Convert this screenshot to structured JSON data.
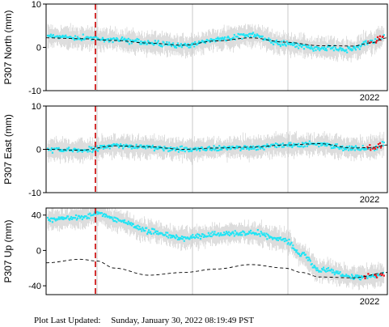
{
  "footer": {
    "label": "Plot Last Updated:",
    "timestamp": "Sunday, January 30, 2022 08:19:49 PST"
  },
  "colors": {
    "data_points": "#22e4f4",
    "recent_points": "#e8141c",
    "error_bars": "#c8c8c8",
    "model_line": "#000000",
    "event_line": "#d01c1c",
    "vgrid": "#bbbbbb"
  },
  "chart_data": [
    {
      "type": "scatter",
      "station": "P307",
      "component": "North",
      "ylabel": "P307 North (mm)",
      "ylim": [
        -10,
        10
      ],
      "yticks": [
        -10,
        0,
        10
      ],
      "x_tick_labels": [
        "2022"
      ],
      "grid": "vertical lines only",
      "event_marker": "dashed red vertical line",
      "series": [
        {
          "role": "daily position",
          "x_fraction": [
            0.0,
            0.1,
            0.2,
            0.3,
            0.4,
            0.5,
            0.6,
            0.7,
            0.8,
            0.9,
            0.95,
            1.0
          ],
          "values": [
            2.5,
            2.2,
            1.8,
            1.0,
            0.3,
            1.8,
            2.8,
            0.8,
            -0.2,
            -0.5,
            1.2,
            2.8
          ]
        },
        {
          "role": "model fit",
          "x_fraction": [
            0.0,
            0.1,
            0.2,
            0.3,
            0.4,
            0.5,
            0.6,
            0.7,
            0.8,
            0.9,
            0.95,
            1.0
          ],
          "values": [
            2.2,
            2.0,
            1.6,
            1.0,
            0.5,
            1.5,
            2.2,
            1.2,
            0.4,
            0.3,
            1.0,
            2.2
          ]
        }
      ],
      "recent_points_fraction": [
        0.94,
        1.0
      ]
    },
    {
      "type": "scatter",
      "station": "P307",
      "component": "East",
      "ylabel": "P307 East (mm)",
      "ylim": [
        -10,
        10
      ],
      "yticks": [
        -10,
        0,
        10
      ],
      "x_tick_labels": [
        "2022"
      ],
      "grid": "vertical lines only",
      "event_marker": "dashed red vertical line",
      "series": [
        {
          "role": "daily position",
          "x_fraction": [
            0.0,
            0.1,
            0.2,
            0.3,
            0.4,
            0.5,
            0.6,
            0.7,
            0.8,
            0.9,
            0.95,
            1.0
          ],
          "values": [
            0.0,
            -0.3,
            0.8,
            0.5,
            0.0,
            0.3,
            0.4,
            1.0,
            1.2,
            0.2,
            0.4,
            1.2
          ]
        },
        {
          "role": "model fit",
          "x_fraction": [
            0.0,
            0.1,
            0.2,
            0.3,
            0.4,
            0.5,
            0.6,
            0.7,
            0.8,
            0.9,
            0.95,
            1.0
          ],
          "values": [
            0.0,
            -0.2,
            0.8,
            0.6,
            0.0,
            0.3,
            0.5,
            1.0,
            1.3,
            0.3,
            0.4,
            1.0
          ]
        }
      ],
      "recent_points_fraction": [
        0.94,
        1.0
      ]
    },
    {
      "type": "scatter",
      "station": "P307",
      "component": "Up",
      "ylabel": "P307 Up (mm)",
      "ylim": [
        -50,
        48
      ],
      "yticks": [
        -40,
        0,
        40
      ],
      "x_tick_labels": [
        "2022"
      ],
      "grid": "vertical lines only",
      "event_marker": "dashed red vertical line",
      "series": [
        {
          "role": "daily position",
          "x_fraction": [
            0.0,
            0.1,
            0.15,
            0.2,
            0.3,
            0.4,
            0.5,
            0.6,
            0.7,
            0.75,
            0.8,
            0.9,
            1.0
          ],
          "values": [
            35,
            37,
            42,
            35,
            22,
            14,
            18,
            20,
            12,
            -5,
            -22,
            -30,
            -28
          ]
        },
        {
          "role": "model fit",
          "x_fraction": [
            0.0,
            0.1,
            0.15,
            0.2,
            0.3,
            0.4,
            0.5,
            0.6,
            0.7,
            0.75,
            0.8,
            0.9,
            1.0
          ],
          "values": [
            -14,
            -10,
            -12,
            -20,
            -28,
            -25,
            -21,
            -16,
            -20,
            -25,
            -30,
            -31,
            -25
          ]
        }
      ],
      "recent_points_fraction": [
        0.93,
        1.0
      ]
    }
  ]
}
